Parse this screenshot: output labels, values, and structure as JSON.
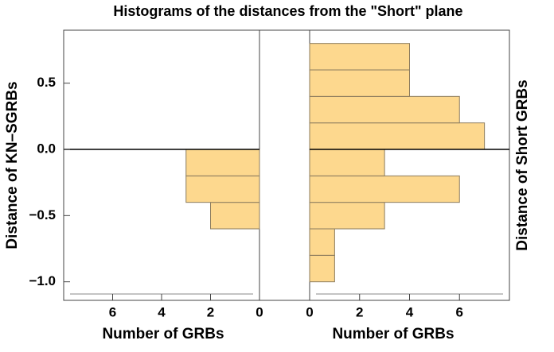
{
  "chart_data": [
    {
      "type": "histogram",
      "orientation": "horizontal",
      "title": "Histograms of the distances from the \"Short\" plane",
      "ylabel": "Distance of KN–SGRBs",
      "xlabel": "Number of GRBs",
      "bins": [
        -0.6,
        -0.4,
        -0.2,
        0
      ],
      "values": [
        2,
        3,
        3
      ],
      "color": "#fdd88e",
      "xlim": [
        0,
        8
      ],
      "xreversed": true,
      "xticks": [
        0,
        2,
        4,
        6
      ],
      "ylim": [
        -1.14,
        0.9
      ],
      "yticks": [
        {
          "value": -1,
          "label": "−1.0"
        },
        {
          "value": -0.5,
          "label": "−0.5"
        },
        {
          "value": 0,
          "label": "0.0"
        },
        0.5
      ]
    },
    {
      "type": "histogram",
      "orientation": "horizontal",
      "ylabel": "Distance of Short GRBs",
      "xlabel": "Number of GRBs",
      "bins": [
        -1,
        -0.8,
        -0.6,
        -0.4,
        -0.2,
        0,
        0.2,
        0.4,
        0.6,
        0.8
      ],
      "values": [
        1,
        1,
        3,
        6,
        3,
        7,
        6,
        4,
        4
      ],
      "color": "#fdd88e",
      "xlim": [
        0,
        8
      ],
      "xticks": [
        0,
        2,
        4,
        6
      ],
      "ylim": [
        -1.14,
        0.9
      ]
    }
  ]
}
